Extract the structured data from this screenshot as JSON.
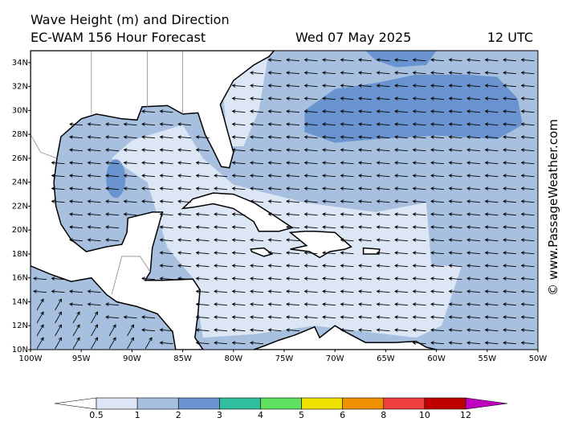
{
  "header": {
    "title": "Wave Height (m) and Direction",
    "model": "EC-WAM 156 Hour Forecast",
    "date": "Wed 07 May 2025",
    "time": "12 UTC"
  },
  "axes": {
    "latitudes": [
      "34N",
      "32N",
      "30N",
      "28N",
      "26N",
      "24N",
      "22N",
      "20N",
      "18N",
      "16N",
      "14N",
      "12N",
      "10N"
    ],
    "longitudes": [
      "100W",
      "95W",
      "90W",
      "85W",
      "80W",
      "75W",
      "70W",
      "65W",
      "60W",
      "55W",
      "50W"
    ]
  },
  "colorbar": {
    "levels": [
      0.5,
      1,
      2,
      3,
      4,
      5,
      6,
      8,
      10,
      12
    ],
    "colors": [
      "#dce6f5",
      "#a8c0e0",
      "#6a94d0",
      "#30c0a0",
      "#60e060",
      "#f0e000",
      "#f09000",
      "#f04040",
      "#c00000"
    ],
    "under_color": "#ffffff",
    "over_color": "#c000c0"
  },
  "watermark": "© www.PassageWeather.com"
}
